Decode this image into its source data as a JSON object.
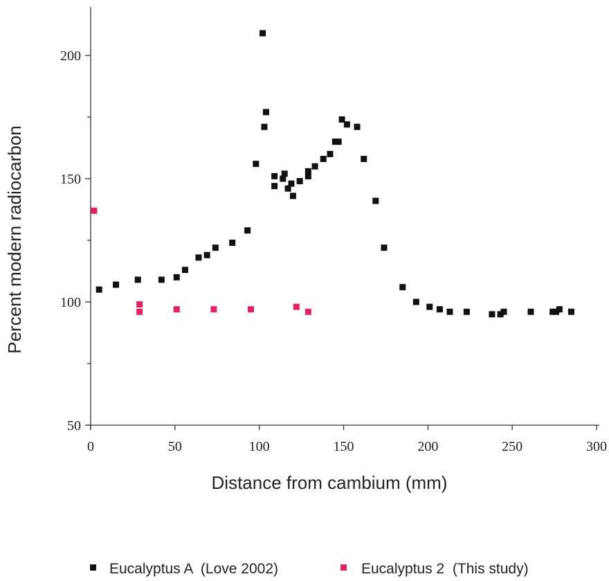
{
  "chart_data": {
    "type": "scatter",
    "title": "",
    "xlabel": "Distance from cambium (mm)",
    "ylabel": "Percent modern radiocarbon",
    "xlim": [
      0,
      300
    ],
    "ylim": [
      50,
      220
    ],
    "xticks": [
      0,
      50,
      100,
      150,
      200,
      250,
      300
    ],
    "yticks": [
      50,
      100,
      150,
      200
    ],
    "grid": false,
    "legend_position": "bottom",
    "series": [
      {
        "name": "Eucalyptus A  (Love 2002)",
        "color": "#111111",
        "x": [
          5,
          15,
          28,
          42,
          51,
          56,
          64,
          69,
          74,
          84,
          93,
          98,
          102,
          103,
          104,
          109,
          109,
          114,
          115,
          117,
          119,
          120,
          124,
          129,
          129,
          133,
          138,
          142,
          145,
          147,
          149,
          152,
          158,
          162,
          169,
          174,
          185,
          193,
          201,
          207,
          213,
          223,
          238,
          243,
          245,
          261,
          274,
          276,
          278,
          285
        ],
        "y": [
          105,
          107,
          109,
          109,
          110,
          113,
          118,
          119,
          122,
          124,
          129,
          156,
          209,
          171,
          177,
          147,
          151,
          150,
          152,
          146,
          148,
          143,
          149,
          151,
          153,
          155,
          158,
          160,
          165,
          165,
          174,
          172,
          171,
          158,
          141,
          122,
          106,
          100,
          98,
          97,
          96,
          96,
          95,
          95,
          96,
          96,
          96,
          96,
          97,
          96
        ]
      },
      {
        "name": "Eucalyptus 2  (This study)",
        "color": "#e0245e",
        "x": [
          2,
          29,
          29,
          51,
          73,
          95,
          122,
          129
        ],
        "y": [
          137,
          99,
          96,
          97,
          97,
          97,
          98,
          96
        ]
      }
    ]
  }
}
